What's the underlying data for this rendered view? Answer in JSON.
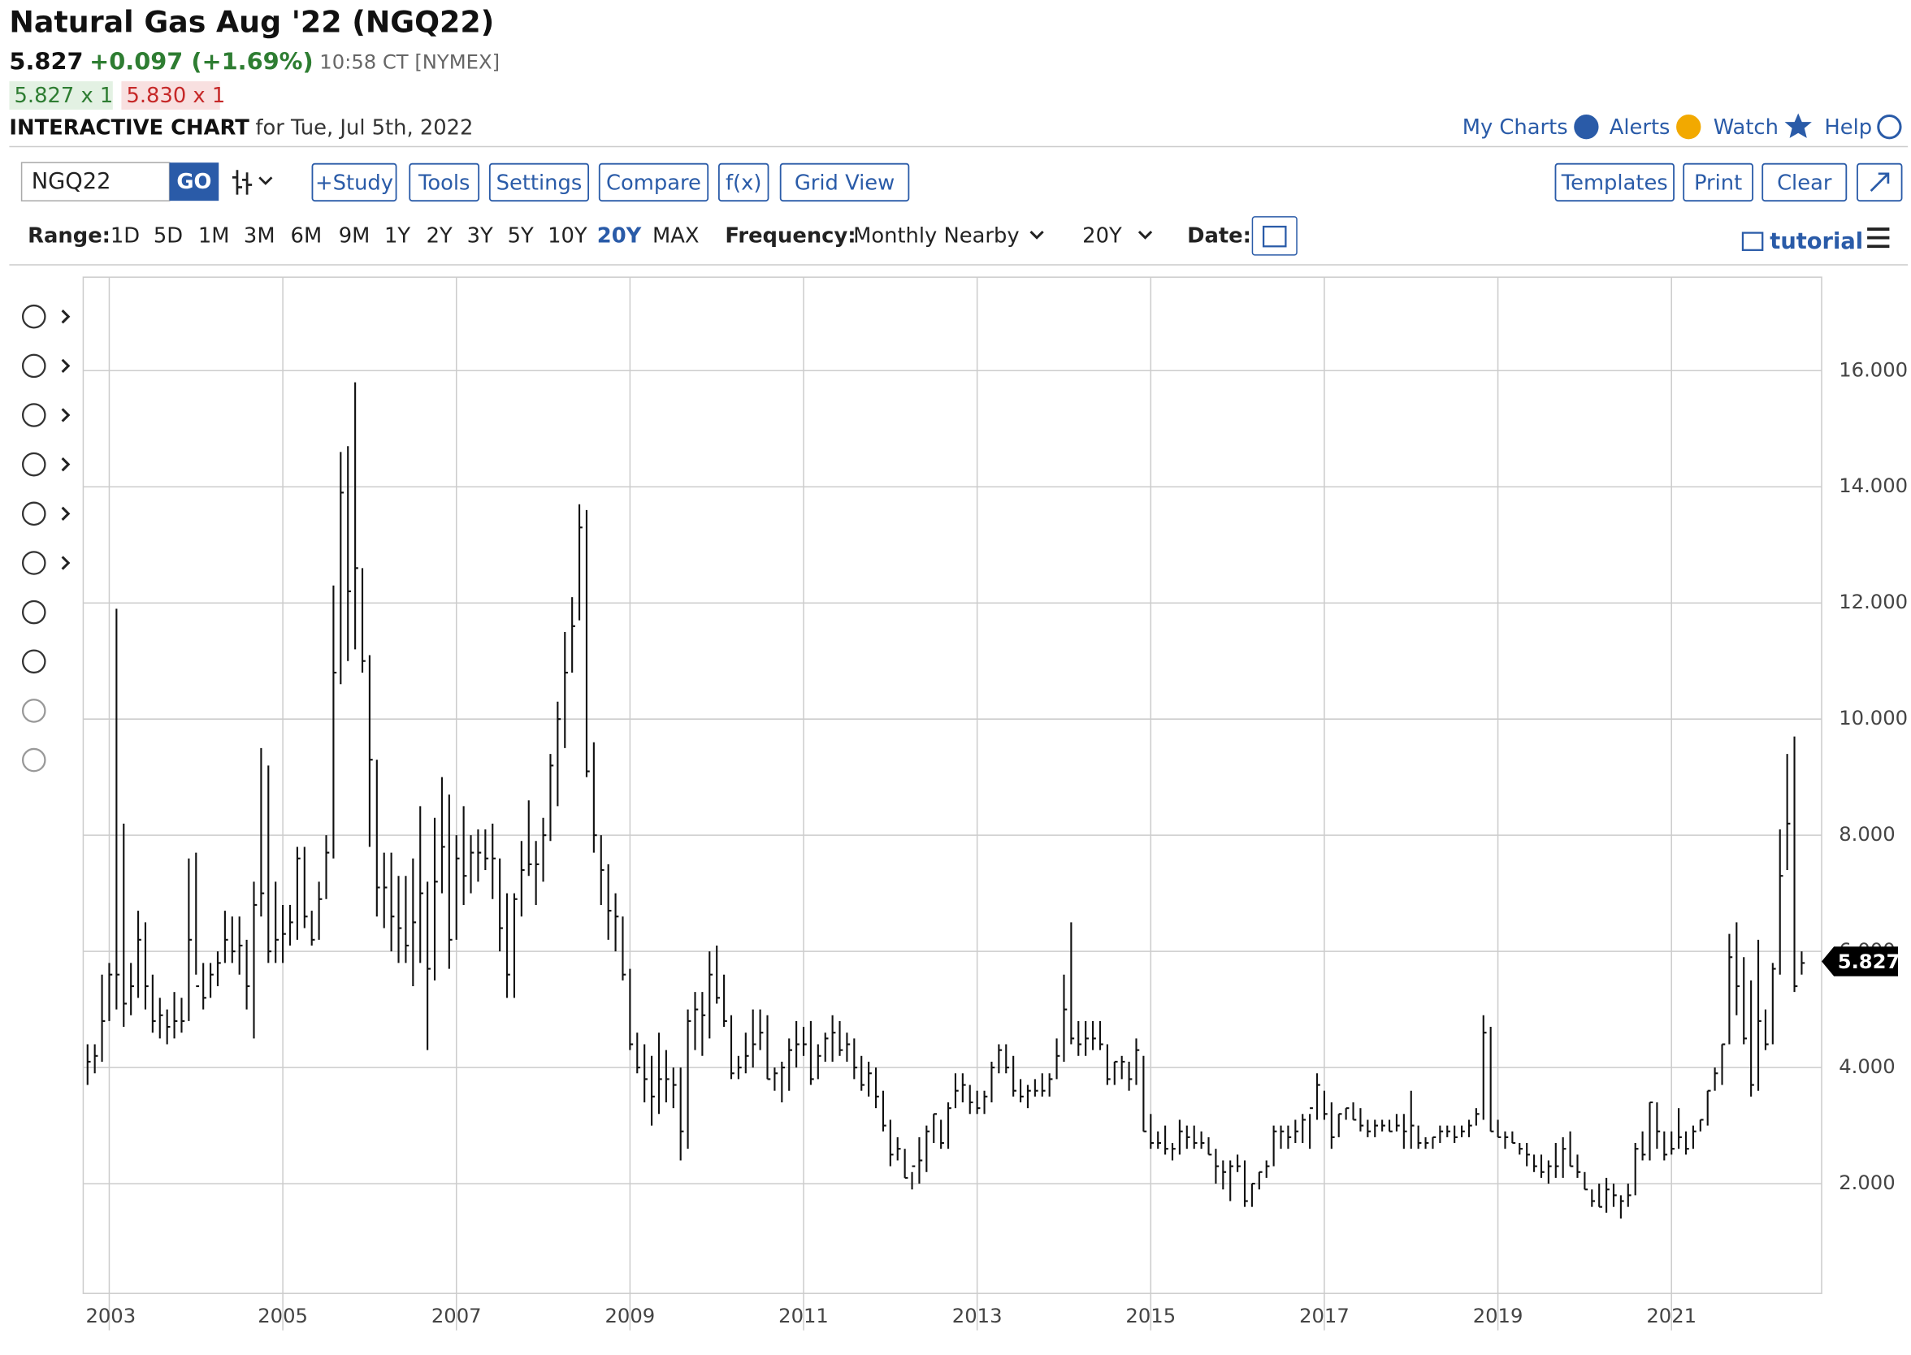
{
  "header": {
    "title": "Natural Gas Aug '22 (NGQ22)",
    "last": "5.827",
    "change": "+0.097 (+1.69%)",
    "time": "10:58 CT [NYMEX]",
    "bid": "5.827 x 1",
    "ask": "5.830 x 1",
    "chart_label": "INTERACTIVE CHART",
    "date": "for Tue, Jul 5th, 2022",
    "links": [
      "My Charts",
      "Alerts",
      "Watch",
      "Help"
    ]
  },
  "toolbar": {
    "symbol": "NGQ22",
    "go": "GO",
    "buttons": [
      "+Study",
      "Tools",
      "Settings",
      "Compare",
      "f(x)",
      "Grid View"
    ],
    "right_buttons": [
      "Templates",
      "Print",
      "Clear"
    ],
    "range_label": "Range:",
    "ranges": [
      "1D",
      "5D",
      "1M",
      "3M",
      "6M",
      "9M",
      "1Y",
      "2Y",
      "3Y",
      "5Y",
      "10Y",
      "20Y",
      "MAX"
    ],
    "active_range": "20Y",
    "frequency_label": "Frequency:",
    "frequency": "Monthly Nearby",
    "period": "20Y",
    "date_label": "Date:",
    "tutorial": "tutorial"
  },
  "chart_data": {
    "type": "ohlc",
    "start": "2002-10",
    "color": "#111111",
    "xlim": [
      2002.7,
      2022.73
    ],
    "xticks": [
      2003,
      2005,
      2007,
      2009,
      2011,
      2013,
      2015,
      2017,
      2019,
      2021
    ],
    "ylim": [
      0.11,
      17.61
    ],
    "yticks": [
      {
        "value": 2,
        "label": "2.000"
      },
      {
        "value": 4,
        "label": "4.000"
      },
      {
        "value": 6,
        "label": "6.000"
      },
      {
        "value": 8,
        "label": "8.000"
      },
      {
        "value": 10,
        "label": "10.000"
      },
      {
        "value": 12,
        "label": "12.000"
      },
      {
        "value": 14,
        "label": "14.000"
      },
      {
        "value": 16,
        "label": "16.000"
      }
    ],
    "grid": true,
    "last_price": 5.827,
    "high": [
      4.4,
      4.4,
      5.6,
      5.8,
      11.9,
      8.2,
      5.8,
      6.7,
      6.5,
      5.6,
      5.2,
      5.0,
      5.3,
      5.2,
      7.6,
      7.7,
      5.8,
      5.8,
      6.0,
      6.7,
      6.6,
      6.6,
      6.2,
      7.2,
      9.5,
      9.2,
      7.2,
      6.8,
      6.8,
      7.8,
      7.8,
      6.7,
      7.2,
      8.0,
      12.3,
      14.6,
      14.7,
      15.8,
      12.6,
      11.1,
      9.3,
      7.7,
      7.7,
      7.3,
      7.3,
      7.6,
      8.5,
      7.2,
      8.3,
      9.0,
      8.7,
      8.0,
      8.5,
      8.0,
      8.1,
      8.1,
      8.2,
      7.6,
      7.0,
      7.0,
      7.9,
      8.6,
      7.9,
      8.3,
      9.4,
      10.3,
      11.5,
      12.1,
      13.7,
      13.6,
      9.6,
      8.0,
      7.5,
      7.0,
      6.6,
      5.7,
      4.6,
      4.4,
      4.2,
      4.6,
      4.3,
      4.0,
      4.0,
      5.0,
      5.3,
      5.3,
      6.0,
      6.1,
      5.6,
      4.9,
      4.2,
      4.6,
      5.0,
      5.0,
      4.9,
      4.0,
      4.1,
      4.5,
      4.8,
      4.7,
      4.8,
      4.4,
      4.6,
      4.9,
      4.8,
      4.6,
      4.5,
      4.2,
      4.1,
      4.0,
      3.6,
      3.1,
      2.8,
      2.6,
      2.2,
      2.8,
      3.0,
      3.2,
      3.1,
      3.4,
      3.9,
      3.9,
      3.7,
      3.6,
      3.6,
      4.1,
      4.4,
      4.4,
      4.2,
      3.8,
      3.7,
      3.8,
      3.9,
      3.9,
      4.5,
      5.6,
      6.5,
      4.8,
      4.8,
      4.8,
      4.8,
      4.4,
      4.1,
      4.2,
      4.1,
      4.5,
      4.2,
      3.2,
      2.9,
      3.0,
      2.7,
      3.1,
      3.0,
      3.0,
      2.9,
      2.8,
      2.6,
      2.4,
      2.4,
      2.5,
      2.4,
      2.0,
      2.2,
      2.4,
      3.0,
      3.0,
      3.0,
      3.1,
      3.2,
      3.2,
      3.9,
      3.6,
      3.4,
      3.2,
      3.3,
      3.4,
      3.3,
      3.1,
      3.1,
      3.1,
      3.1,
      3.2,
      3.2,
      3.6,
      3.0,
      2.8,
      2.8,
      3.0,
      3.0,
      3.0,
      3.0,
      3.1,
      3.3,
      4.9,
      4.7,
      3.1,
      2.9,
      2.9,
      2.7,
      2.7,
      2.5,
      2.5,
      2.4,
      2.7,
      2.8,
      2.9,
      2.5,
      2.2,
      1.9,
      2.0,
      2.1,
      2.0,
      1.8,
      2.0,
      2.7,
      2.9,
      3.4,
      3.4,
      2.9,
      2.9,
      3.3,
      2.9,
      3.0,
      3.1,
      3.6,
      4.0,
      4.4,
      6.3,
      6.5,
      5.9,
      5.5,
      6.2,
      5.0,
      5.8,
      8.1,
      9.4,
      9.7,
      6.0
    ],
    "low": [
      3.7,
      3.9,
      4.1,
      4.8,
      5.0,
      4.7,
      4.9,
      5.2,
      5.0,
      4.6,
      4.5,
      4.4,
      4.5,
      4.6,
      4.8,
      5.6,
      5.0,
      5.2,
      5.4,
      5.8,
      5.8,
      5.6,
      5.0,
      4.5,
      6.6,
      5.8,
      5.8,
      5.8,
      6.1,
      6.2,
      6.4,
      6.1,
      6.2,
      6.9,
      7.6,
      10.6,
      11.0,
      11.2,
      10.8,
      7.8,
      6.6,
      6.4,
      6.0,
      5.8,
      5.8,
      5.4,
      5.8,
      4.3,
      5.5,
      7.0,
      5.7,
      6.2,
      6.8,
      7.0,
      7.2,
      7.4,
      6.9,
      6.0,
      5.2,
      5.2,
      6.6,
      7.3,
      6.8,
      7.2,
      7.9,
      8.5,
      9.5,
      10.8,
      11.7,
      9.0,
      7.7,
      6.8,
      6.2,
      6.0,
      5.5,
      4.3,
      3.9,
      3.4,
      3.0,
      3.2,
      3.4,
      3.3,
      2.4,
      2.6,
      4.3,
      4.2,
      4.5,
      5.1,
      4.7,
      3.8,
      3.8,
      3.9,
      4.0,
      4.3,
      3.8,
      3.6,
      3.4,
      3.6,
      4.0,
      4.2,
      3.7,
      3.8,
      4.1,
      4.1,
      4.2,
      4.1,
      3.8,
      3.6,
      3.5,
      3.3,
      2.9,
      2.3,
      2.4,
      2.1,
      1.9,
      2.0,
      2.2,
      2.7,
      2.6,
      2.6,
      3.3,
      3.4,
      3.2,
      3.2,
      3.2,
      3.4,
      3.9,
      3.9,
      3.5,
      3.4,
      3.3,
      3.5,
      3.5,
      3.5,
      3.8,
      4.1,
      4.4,
      4.2,
      4.2,
      4.3,
      4.3,
      3.7,
      3.7,
      3.8,
      3.6,
      3.7,
      2.9,
      2.6,
      2.6,
      2.5,
      2.4,
      2.5,
      2.6,
      2.6,
      2.6,
      2.5,
      2.0,
      1.9,
      1.7,
      2.2,
      1.6,
      1.6,
      1.9,
      2.1,
      2.3,
      2.6,
      2.6,
      2.7,
      2.7,
      2.6,
      3.1,
      3.1,
      2.6,
      2.8,
      3.1,
      3.1,
      2.9,
      2.8,
      2.8,
      2.9,
      2.9,
      2.9,
      2.6,
      2.6,
      2.6,
      2.6,
      2.6,
      2.7,
      2.8,
      2.7,
      2.8,
      2.8,
      3.0,
      3.1,
      2.9,
      2.8,
      2.6,
      2.7,
      2.5,
      2.3,
      2.2,
      2.1,
      2.0,
      2.1,
      2.1,
      2.3,
      2.1,
      1.9,
      1.6,
      1.6,
      1.5,
      1.6,
      1.4,
      1.6,
      1.8,
      2.4,
      2.4,
      2.6,
      2.4,
      2.5,
      2.6,
      2.5,
      2.6,
      2.9,
      3.0,
      3.6,
      3.7,
      4.4,
      4.9,
      4.4,
      3.5,
      3.6,
      4.3,
      4.4,
      5.6,
      7.4,
      5.3,
      5.6
    ],
    "close": [
      4.1,
      4.2,
      4.8,
      5.6,
      5.6,
      5.1,
      5.4,
      6.2,
      5.4,
      4.8,
      4.9,
      4.7,
      4.8,
      4.8,
      6.2,
      5.4,
      5.2,
      5.6,
      5.8,
      6.2,
      6.0,
      6.1,
      5.4,
      6.8,
      7.0,
      6.0,
      6.2,
      6.3,
      6.5,
      7.6,
      6.6,
      6.2,
      6.9,
      7.7,
      10.8,
      13.9,
      12.2,
      12.6,
      11.0,
      9.3,
      7.1,
      7.1,
      6.6,
      6.4,
      6.1,
      6.5,
      7.0,
      5.7,
      7.2,
      7.8,
      6.2,
      7.6,
      7.3,
      7.7,
      7.7,
      7.6,
      7.6,
      6.4,
      5.6,
      6.9,
      7.4,
      7.5,
      7.5,
      8.0,
      9.2,
      10.0,
      10.8,
      11.6,
      13.3,
      9.1,
      8.0,
      7.4,
      6.7,
      6.6,
      5.6,
      4.4,
      4.0,
      3.8,
      3.5,
      3.8,
      3.8,
      3.7,
      2.9,
      4.8,
      5.0,
      4.9,
      5.6,
      5.2,
      4.8,
      3.9,
      4.0,
      4.2,
      4.4,
      4.6,
      3.8,
      3.9,
      4.0,
      4.3,
      4.4,
      4.4,
      3.8,
      4.2,
      4.5,
      4.6,
      4.3,
      4.4,
      4.0,
      3.7,
      3.9,
      3.5,
      3.0,
      2.5,
      2.6,
      2.1,
      2.3,
      2.4,
      2.9,
      3.2,
      2.7,
      3.3,
      3.6,
      3.7,
      3.4,
      3.3,
      3.5,
      4.0,
      4.3,
      4.0,
      3.6,
      3.5,
      3.6,
      3.6,
      3.6,
      3.8,
      4.2,
      5.0,
      4.5,
      4.4,
      4.5,
      4.5,
      4.4,
      3.8,
      4.1,
      4.1,
      3.8,
      4.3,
      2.9,
      2.7,
      2.7,
      2.6,
      2.6,
      2.9,
      2.8,
      2.7,
      2.7,
      2.5,
      2.3,
      2.2,
      2.3,
      2.3,
      1.7,
      2.0,
      2.2,
      2.3,
      2.9,
      2.9,
      2.8,
      2.9,
      3.1,
      3.3,
      3.7,
      3.2,
      2.8,
      3.2,
      3.3,
      3.1,
      3.0,
      2.9,
      3.0,
      3.0,
      2.9,
      3.0,
      2.9,
      3.0,
      2.7,
      2.7,
      2.8,
      2.9,
      2.9,
      2.8,
      2.9,
      3.0,
      3.2,
      4.6,
      2.9,
      2.8,
      2.8,
      2.7,
      2.6,
      2.5,
      2.3,
      2.2,
      2.3,
      2.3,
      2.6,
      2.3,
      2.2,
      1.9,
      1.7,
      1.6,
      1.9,
      1.8,
      1.7,
      1.8,
      2.6,
      2.5,
      3.4,
      2.9,
      2.5,
      2.6,
      2.8,
      2.6,
      2.9,
      3.1,
      3.6,
      3.9,
      4.4,
      5.9,
      5.4,
      4.5,
      3.7,
      4.8,
      4.4,
      5.7,
      7.3,
      8.2,
      5.4,
      5.8
    ]
  }
}
